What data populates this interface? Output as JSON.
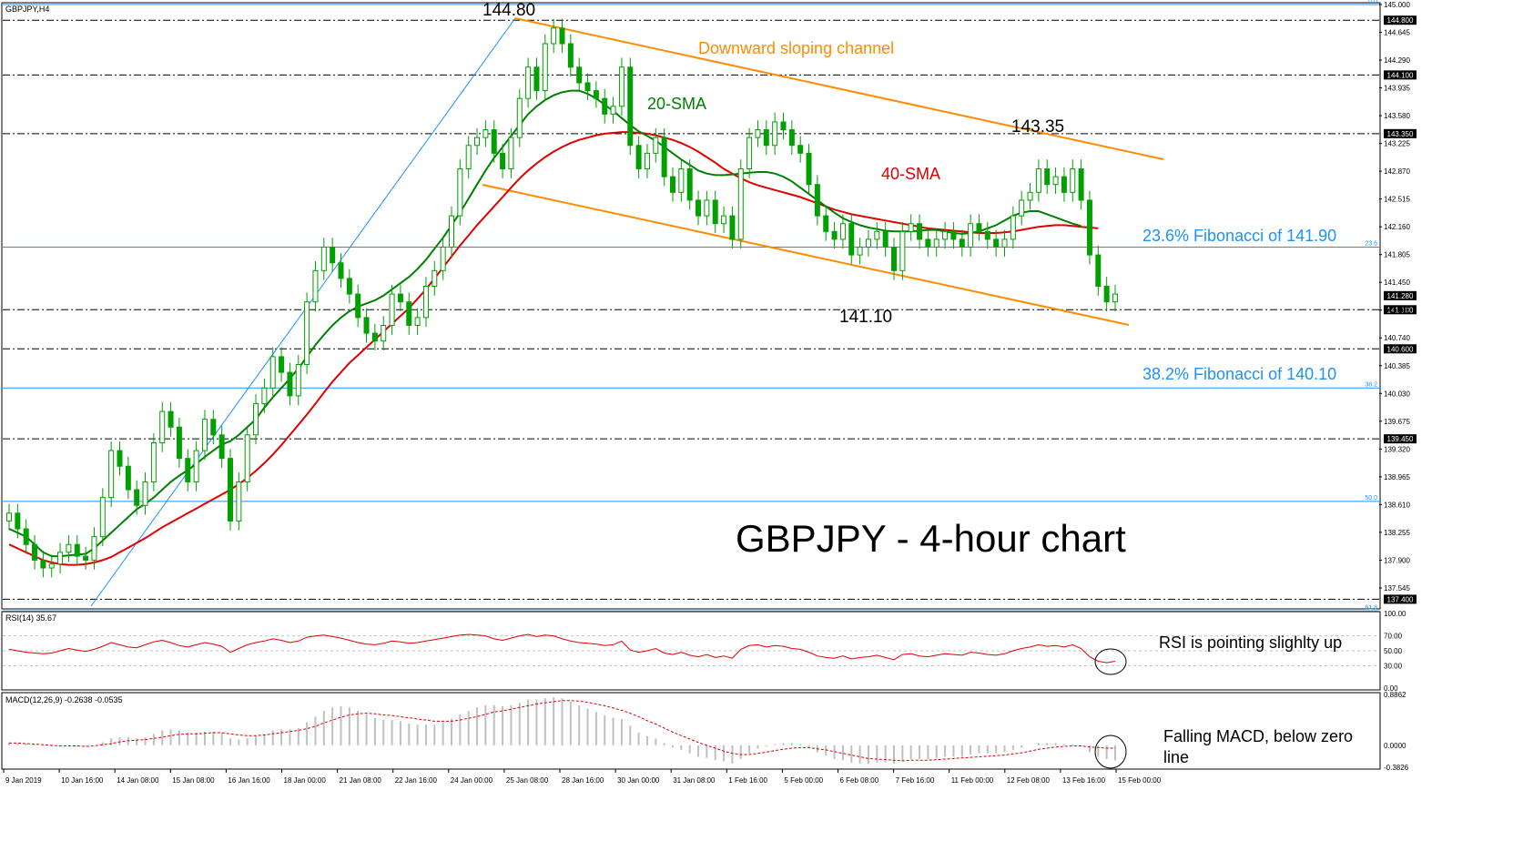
{
  "window": {
    "title": "GBPJPY,H4"
  },
  "colors": {
    "background": "#ffffff",
    "border": "#000000",
    "candle": "#00a000",
    "sma20": "#008000",
    "sma40": "#e00000",
    "channel": "#ff8c00",
    "fibonacci": "#1e90ff",
    "trendline": "#1e90ff",
    "rsi": "#e00000",
    "macd_hist": "#c0c0c0",
    "macd_signal": "#e00000",
    "level_line": "#000000",
    "title": "#000000"
  },
  "chart_data": [
    {
      "type": "candlestick",
      "title": "GBPJPY - 4-hour chart",
      "symbol_label": "GBPJPY,H4",
      "ylim": [
        137.3,
        145.0
      ],
      "y_ticks": [
        "145.000",
        "144.645",
        "144.290",
        "143.935",
        "143.580",
        "143.225",
        "142.870",
        "142.515",
        "142.160",
        "141.805",
        "141.450",
        "141.095",
        "140.740",
        "140.385",
        "140.030",
        "139.675",
        "139.320",
        "138.965",
        "138.610",
        "138.255",
        "137.900",
        "137.545"
      ],
      "x_tick_labels": [
        "9 Jan 2019",
        "10 Jan 16:00",
        "14 Jan 08:00",
        "15 Jan 08:00",
        "16 Jan 16:00",
        "18 Jan 00:00",
        "21 Jan 08:00",
        "22 Jan 16:00",
        "24 Jan 00:00",
        "25 Jan 08:00",
        "28 Jan 16:00",
        "30 Jan 00:00",
        "31 Jan 08:00",
        "1 Feb 16:00",
        "5 Feb 00:00",
        "6 Feb 08:00",
        "7 Feb 16:00",
        "11 Feb 00:00",
        "12 Feb 08:00",
        "13 Feb 16:00",
        "15 Feb 00:00"
      ],
      "horizontal_levels": [
        {
          "value": 144.8,
          "label": "144.800",
          "style": "dashdot"
        },
        {
          "value": 144.1,
          "label": "144.100",
          "style": "dashdot"
        },
        {
          "value": 143.35,
          "label": "143.350",
          "style": "dashdot"
        },
        {
          "value": 141.28,
          "label": "141.280",
          "style": "current"
        },
        {
          "value": 141.1,
          "label": "141.100",
          "style": "dashdot"
        },
        {
          "value": 140.6,
          "label": "140.600",
          "style": "dashdot"
        },
        {
          "value": 139.45,
          "label": "139.450",
          "style": "dashdot"
        },
        {
          "value": 137.4,
          "label": "137.400",
          "style": "dashdot"
        }
      ],
      "fibonacci_levels": [
        {
          "value": 145.0,
          "ratio": "0.0"
        },
        {
          "value": 141.9,
          "ratio": "23.6"
        },
        {
          "value": 140.1,
          "ratio": "38.2"
        },
        {
          "value": 138.65,
          "ratio": "50.0"
        },
        {
          "value": 137.25,
          "ratio": "61.8"
        }
      ],
      "annotations": {
        "high_label": "144.80",
        "low_label": "141.10",
        "mid_high_label": "143.35",
        "channel_label": "Downward sloping channel",
        "sma20_label": "20-SMA",
        "sma40_label": "40-SMA",
        "fib236_label": "23.6% Fibonacci of 141.90",
        "fib382_label": "38.2% Fibonacci of 140.10"
      },
      "closes": [
        138.5,
        138.3,
        138.1,
        137.9,
        137.8,
        137.85,
        138.0,
        138.1,
        137.95,
        137.9,
        138.2,
        138.7,
        139.3,
        139.1,
        138.8,
        138.6,
        138.9,
        139.4,
        139.8,
        139.6,
        139.2,
        138.9,
        139.3,
        139.7,
        139.5,
        139.2,
        138.4,
        138.9,
        139.5,
        139.9,
        140.1,
        140.5,
        140.3,
        140.0,
        140.4,
        141.2,
        141.6,
        141.9,
        141.7,
        141.5,
        141.3,
        141.0,
        140.8,
        140.7,
        140.9,
        141.3,
        141.2,
        140.9,
        141.0,
        141.4,
        141.6,
        141.9,
        142.3,
        142.9,
        143.2,
        143.3,
        143.4,
        143.1,
        142.9,
        143.3,
        143.8,
        144.2,
        143.9,
        144.5,
        144.7,
        144.5,
        144.2,
        144.0,
        143.9,
        143.8,
        143.6,
        143.7,
        144.2,
        143.2,
        142.9,
        143.1,
        143.3,
        142.8,
        142.6,
        142.9,
        142.5,
        142.3,
        142.5,
        142.2,
        142.3,
        142.0,
        142.9,
        143.3,
        143.4,
        143.2,
        143.5,
        143.4,
        143.2,
        143.1,
        142.7,
        142.3,
        142.1,
        142.0,
        142.2,
        141.8,
        141.9,
        142.0,
        142.1,
        141.9,
        141.6,
        142.1,
        142.2,
        142.0,
        141.9,
        142.0,
        142.1,
        142.0,
        141.9,
        142.2,
        142.1,
        142.0,
        141.9,
        142.0,
        142.3,
        142.5,
        142.6,
        142.9,
        142.7,
        142.8,
        142.6,
        142.9,
        142.5,
        141.8,
        141.4,
        141.2,
        141.3
      ],
      "sma20": [
        138.3,
        138.25,
        138.2,
        138.1,
        138.0,
        137.95,
        137.95,
        137.96,
        137.97,
        137.98,
        138.05,
        138.15,
        138.25,
        138.35,
        138.45,
        138.55,
        138.62,
        138.7,
        138.8,
        138.9,
        138.98,
        139.05,
        139.13,
        139.22,
        139.3,
        139.38,
        139.42,
        139.5,
        139.6,
        139.7,
        139.85,
        139.98,
        140.1,
        140.22,
        140.35,
        140.5,
        140.65,
        140.78,
        140.9,
        141.0,
        141.08,
        141.14,
        141.18,
        141.22,
        141.28,
        141.36,
        141.44,
        141.52,
        141.62,
        141.74,
        141.88,
        142.02,
        142.18,
        142.34,
        142.52,
        142.7,
        142.88,
        143.04,
        143.18,
        143.32,
        143.46,
        143.6,
        143.7,
        143.78,
        143.84,
        143.88,
        143.9,
        143.9,
        143.86,
        143.8,
        143.72,
        143.64,
        143.55,
        143.46,
        143.38,
        143.32,
        143.26,
        143.18,
        143.1,
        143.02,
        142.95,
        142.88,
        142.84,
        142.82,
        142.82,
        142.83,
        142.84,
        142.85,
        142.86,
        142.86,
        142.84,
        142.8,
        142.74,
        142.66,
        142.58,
        142.5,
        142.42,
        142.34,
        142.27,
        142.22,
        142.18,
        142.15,
        142.13,
        142.11,
        142.1,
        142.1,
        142.1,
        142.11,
        142.12,
        142.12,
        142.1,
        142.08,
        142.07,
        142.08,
        142.1,
        142.14,
        142.18,
        142.24,
        142.3,
        142.34,
        142.36,
        142.36,
        142.32,
        142.28,
        142.24,
        142.2,
        142.17
      ],
      "sma40": [
        138.1,
        138.05,
        138.0,
        137.95,
        137.9,
        137.87,
        137.85,
        137.84,
        137.84,
        137.85,
        137.87,
        137.9,
        137.94,
        138.0,
        138.06,
        138.12,
        138.18,
        138.25,
        138.32,
        138.38,
        138.44,
        138.5,
        138.56,
        138.62,
        138.68,
        138.74,
        138.8,
        138.87,
        138.95,
        139.04,
        139.14,
        139.25,
        139.37,
        139.5,
        139.63,
        139.76,
        139.9,
        140.04,
        140.18,
        140.3,
        140.42,
        140.52,
        140.62,
        140.72,
        140.82,
        140.92,
        141.02,
        141.12,
        141.24,
        141.36,
        141.5,
        141.64,
        141.78,
        141.92,
        142.05,
        142.18,
        142.3,
        142.42,
        142.54,
        142.66,
        142.78,
        142.88,
        142.97,
        143.05,
        143.12,
        143.18,
        143.23,
        143.27,
        143.3,
        143.33,
        143.35,
        143.36,
        143.37,
        143.37,
        143.36,
        143.35,
        143.33,
        143.3,
        143.27,
        143.23,
        143.18,
        143.12,
        143.05,
        142.98,
        142.9,
        142.84,
        142.78,
        142.73,
        142.69,
        142.66,
        142.63,
        142.6,
        142.57,
        142.54,
        142.5,
        142.46,
        142.42,
        142.38,
        142.35,
        142.32,
        142.3,
        142.28,
        142.26,
        142.24,
        142.22,
        142.2,
        142.18,
        142.16,
        142.14,
        142.13,
        142.12,
        142.11,
        142.1,
        142.09,
        142.08,
        142.08,
        142.08,
        142.09,
        142.1,
        142.12,
        142.14,
        142.16,
        142.17,
        142.18,
        142.18,
        142.17,
        142.16,
        142.15,
        142.14
      ]
    },
    {
      "type": "line",
      "title": "RSI(14) 35.67",
      "ylim": [
        0,
        100
      ],
      "y_ticks": [
        "100.00",
        "70.00",
        "50.00",
        "30.00",
        "0.00"
      ],
      "annotation": "RSI is pointing slighlty up",
      "values": [
        52,
        50,
        48,
        47,
        46,
        47,
        50,
        53,
        51,
        49,
        52,
        56,
        61,
        58,
        55,
        54,
        58,
        62,
        64,
        61,
        57,
        55,
        58,
        61,
        59,
        56,
        48,
        53,
        58,
        61,
        63,
        66,
        64,
        61,
        63,
        68,
        70,
        71,
        69,
        67,
        64,
        61,
        59,
        58,
        60,
        63,
        62,
        60,
        61,
        63,
        65,
        67,
        69,
        71,
        72,
        71,
        70,
        66,
        64,
        67,
        70,
        72,
        69,
        71,
        70,
        66,
        63,
        61,
        60,
        59,
        57,
        58,
        63,
        51,
        48,
        50,
        53,
        47,
        45,
        48,
        44,
        42,
        45,
        41,
        43,
        40,
        52,
        57,
        58,
        55,
        57,
        56,
        53,
        52,
        48,
        43,
        41,
        40,
        43,
        39,
        41,
        42,
        44,
        41,
        38,
        45,
        46,
        43,
        42,
        44,
        46,
        45,
        44,
        48,
        47,
        45,
        44,
        46,
        50,
        53,
        55,
        58,
        56,
        57,
        55,
        58,
        53,
        42,
        36,
        34,
        36
      ]
    },
    {
      "type": "bar",
      "title": "MACD(12,26,9) -0.2638 -0.0535",
      "ylim": [
        -0.3826,
        0.8862
      ],
      "y_ticks": [
        "0.8862",
        "0.0000",
        "-0.3826"
      ],
      "annotation": "Falling MACD, below zero line",
      "histogram": [
        0.05,
        0.04,
        0.03,
        0.01,
        -0.01,
        -0.02,
        -0.02,
        -0.01,
        -0.02,
        -0.02,
        0.0,
        0.05,
        0.12,
        0.14,
        0.14,
        0.12,
        0.14,
        0.2,
        0.26,
        0.28,
        0.26,
        0.22,
        0.22,
        0.24,
        0.24,
        0.22,
        0.12,
        0.1,
        0.12,
        0.16,
        0.2,
        0.26,
        0.28,
        0.28,
        0.3,
        0.4,
        0.5,
        0.6,
        0.66,
        0.68,
        0.66,
        0.6,
        0.54,
        0.48,
        0.44,
        0.44,
        0.42,
        0.38,
        0.36,
        0.36,
        0.36,
        0.4,
        0.46,
        0.54,
        0.6,
        0.66,
        0.7,
        0.7,
        0.68,
        0.7,
        0.74,
        0.8,
        0.8,
        0.82,
        0.84,
        0.82,
        0.76,
        0.7,
        0.64,
        0.58,
        0.52,
        0.48,
        0.46,
        0.34,
        0.22,
        0.16,
        0.12,
        0.04,
        -0.04,
        -0.08,
        -0.14,
        -0.2,
        -0.22,
        -0.26,
        -0.28,
        -0.32,
        -0.24,
        -0.14,
        -0.06,
        -0.02,
        0.02,
        0.04,
        0.04,
        0.02,
        -0.04,
        -0.12,
        -0.18,
        -0.24,
        -0.26,
        -0.3,
        -0.32,
        -0.32,
        -0.3,
        -0.3,
        -0.32,
        -0.28,
        -0.24,
        -0.24,
        -0.24,
        -0.22,
        -0.2,
        -0.2,
        -0.2,
        -0.16,
        -0.14,
        -0.14,
        -0.14,
        -0.12,
        -0.08,
        -0.04,
        0.0,
        0.04,
        0.04,
        0.04,
        0.02,
        0.02,
        -0.02,
        -0.12,
        -0.2,
        -0.24,
        -0.26
      ],
      "signal": [
        0.04,
        0.04,
        0.03,
        0.02,
        0.01,
        0.0,
        -0.01,
        -0.01,
        -0.01,
        -0.02,
        -0.01,
        0.01,
        0.03,
        0.06,
        0.08,
        0.09,
        0.1,
        0.12,
        0.14,
        0.17,
        0.19,
        0.2,
        0.2,
        0.21,
        0.22,
        0.22,
        0.2,
        0.18,
        0.17,
        0.17,
        0.18,
        0.2,
        0.22,
        0.24,
        0.26,
        0.29,
        0.33,
        0.39,
        0.44,
        0.49,
        0.53,
        0.55,
        0.56,
        0.55,
        0.53,
        0.52,
        0.5,
        0.48,
        0.46,
        0.44,
        0.42,
        0.42,
        0.42,
        0.44,
        0.47,
        0.5,
        0.54,
        0.58,
        0.6,
        0.63,
        0.66,
        0.69,
        0.72,
        0.74,
        0.76,
        0.78,
        0.78,
        0.77,
        0.75,
        0.72,
        0.69,
        0.65,
        0.61,
        0.56,
        0.5,
        0.43,
        0.37,
        0.3,
        0.23,
        0.17,
        0.11,
        0.05,
        0.0,
        -0.05,
        -0.1,
        -0.14,
        -0.16,
        -0.16,
        -0.14,
        -0.12,
        -0.09,
        -0.07,
        -0.05,
        -0.04,
        -0.04,
        -0.06,
        -0.08,
        -0.11,
        -0.14,
        -0.17,
        -0.2,
        -0.23,
        -0.24,
        -0.25,
        -0.26,
        -0.27,
        -0.26,
        -0.26,
        -0.26,
        -0.25,
        -0.24,
        -0.23,
        -0.22,
        -0.21,
        -0.2,
        -0.19,
        -0.18,
        -0.17,
        -0.15,
        -0.13,
        -0.1,
        -0.07,
        -0.05,
        -0.03,
        -0.02,
        -0.01,
        -0.01,
        -0.03,
        -0.04,
        -0.05,
        -0.05
      ]
    }
  ]
}
